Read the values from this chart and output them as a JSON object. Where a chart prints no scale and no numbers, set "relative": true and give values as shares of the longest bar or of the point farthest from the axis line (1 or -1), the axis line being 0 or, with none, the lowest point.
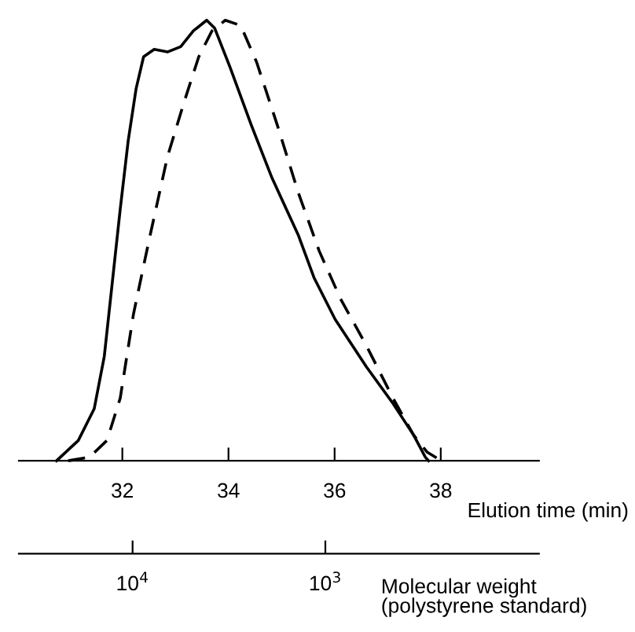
{
  "chart_data": {
    "type": "line",
    "relative": true,
    "xlabel": "Elution time (min)",
    "xlim": [
      30.05,
      39.85
    ],
    "xticks": [
      32,
      34,
      36,
      38
    ],
    "x2label": "Molecular weight\n(polystyrene standard)",
    "x2lim": [
      38900,
      78
    ],
    "x2ticks": [
      {
        "value": 10000,
        "label": "10$^{4}$"
      },
      {
        "value": 1000,
        "label": "10$^{3}$"
      }
    ],
    "log": "x2",
    "grid": false,
    "legend": false,
    "series": [
      {
        "color": "#000000",
        "line_style": "solid",
        "x": [
          30.76,
          31.17,
          31.47,
          31.66,
          31.81,
          31.96,
          32.11,
          32.26,
          32.4,
          32.6,
          32.85,
          33.1,
          33.34,
          33.59,
          33.74,
          34.03,
          34.43,
          34.82,
          35.32,
          35.61,
          36.01,
          36.6,
          37.1,
          37.49,
          37.71,
          37.77
        ],
        "values": [
          0,
          0.046,
          0.118,
          0.237,
          0.404,
          0.571,
          0.726,
          0.845,
          0.917,
          0.934,
          0.928,
          0.94,
          0.976,
          1.0,
          0.982,
          0.893,
          0.762,
          0.642,
          0.511,
          0.416,
          0.321,
          0.213,
          0.13,
          0.058,
          0.008,
          0
        ]
      },
      {
        "color": "#000000",
        "line_style": "dashed",
        "x": [
          30.98,
          31.38,
          31.71,
          31.96,
          32.21,
          32.5,
          32.85,
          33.15,
          33.44,
          33.69,
          33.94,
          34.23,
          34.53,
          34.92,
          35.32,
          35.71,
          36.11,
          36.6,
          37.1,
          37.49,
          37.74,
          37.94,
          38.03
        ],
        "values": [
          0,
          0.008,
          0.046,
          0.142,
          0.333,
          0.499,
          0.69,
          0.809,
          0.917,
          0.976,
          1.0,
          0.988,
          0.905,
          0.762,
          0.607,
          0.476,
          0.368,
          0.261,
          0.142,
          0.058,
          0.02,
          0.005,
          0
        ]
      }
    ]
  }
}
